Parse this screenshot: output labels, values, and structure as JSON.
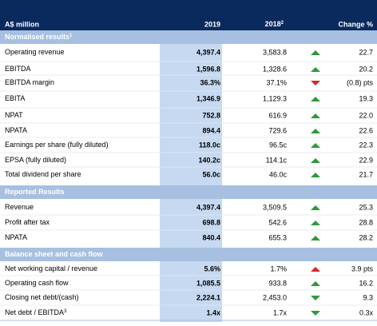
{
  "header": {
    "unit": "A$ million",
    "col2019": "2019",
    "col2018": "2018",
    "col2018_sup": "2",
    "change": "Change %"
  },
  "sections": [
    {
      "title": "Normalised results",
      "title_sup": "1",
      "rows": [
        {
          "label": "Operating revenue",
          "v2019": "4,397.4",
          "v2018": "3,583.8",
          "change": "22.7"
        },
        {
          "label": "EBITDA",
          "v2019": "1,596.8",
          "v2018": "1,328.6",
          "change": "20.2"
        },
        {
          "label": "EBITDA margin",
          "v2019": "36.3%",
          "v2018": "37.1%",
          "change": "(0.8) pts"
        },
        {
          "label": "EBITA",
          "v2019": "1,346.9",
          "v2018": "1,129.3",
          "change": "19.3"
        },
        {
          "label": "NPAT",
          "v2019": "752.8",
          "v2018": "616.9",
          "change": "22.0"
        },
        {
          "label": "NPATA",
          "v2019": "894.4",
          "v2018": "729.6",
          "change": "22.6"
        },
        {
          "label": "Earnings per share (fully diluted)",
          "v2019": "118.0c",
          "v2018": "96.5c",
          "change": "22.3"
        },
        {
          "label": "EPSA (fully diluted)",
          "v2019": "140.2c",
          "v2018": "114.1c",
          "change": "22.9"
        },
        {
          "label": "Total dividend per share",
          "v2019": "56.0c",
          "v2018": "46.0c",
          "change": "21.7"
        }
      ]
    },
    {
      "title": "Reported Results",
      "rows": [
        {
          "label": "Revenue",
          "v2019": "4,397.4",
          "v2018": "3,509.5",
          "change": "25.3"
        },
        {
          "label": "Profit after tax",
          "v2019": "698.8",
          "v2018": "542.6",
          "change": "28.8"
        },
        {
          "label": "NPATA",
          "v2019": "840.4",
          "v2018": "655.3",
          "change": "28.2"
        }
      ]
    },
    {
      "title": "Balance sheet and cash flow",
      "rows": [
        {
          "label": "Net working capital / revenue",
          "v2019": "5.6%",
          "v2018": "1.7%",
          "change": "3.9 pts"
        },
        {
          "label": "Operating cash flow",
          "v2019": "1,085.5",
          "v2018": "933.8",
          "change": "16.2"
        },
        {
          "label": "Closing net debt/(cash)",
          "v2019": "2,224.1",
          "v2018": "2,453.0",
          "change": "9.3"
        },
        {
          "label": "Net debt / EBITDA",
          "label_sup": "3",
          "v2019": "1.4x",
          "v2018": "1.7x",
          "change": "0.3x"
        }
      ]
    }
  ]
}
